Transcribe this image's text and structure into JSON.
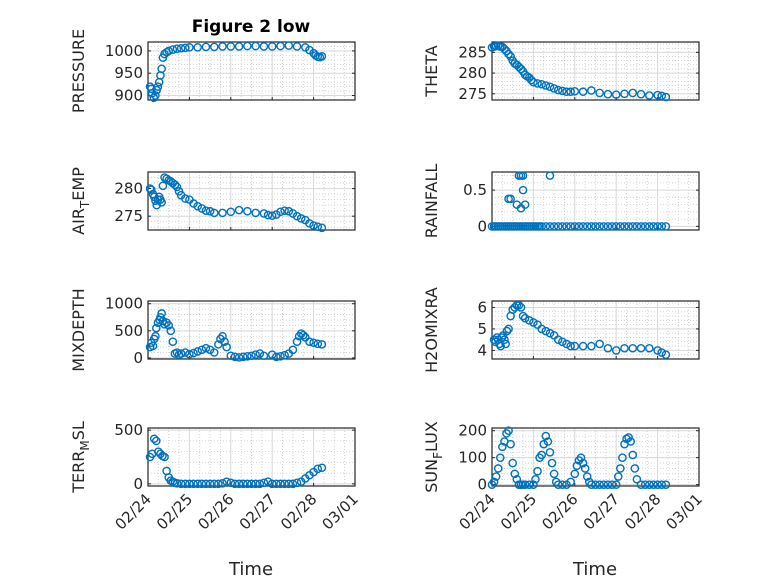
{
  "figure": {
    "title": "Figure 2 low",
    "xlabel": "Time",
    "x_tick_labels": [
      "02/24",
      "02/25",
      "02/26",
      "02/27",
      "02/28",
      "03/01"
    ],
    "marker_color": "#0072BD"
  },
  "chart_data": [
    {
      "type": "scatter",
      "ylabel": "PRESSURE",
      "xlim": [
        0,
        5
      ],
      "ylim": [
        890,
        1020
      ],
      "yticks": [
        900,
        950,
        1000
      ],
      "x": [
        0.05,
        0.08,
        0.1,
        0.14,
        0.18,
        0.21,
        0.24,
        0.27,
        0.3,
        0.33,
        0.36,
        0.4,
        0.45,
        0.5,
        0.6,
        0.7,
        0.8,
        0.9,
        1.0,
        1.2,
        1.4,
        1.6,
        1.8,
        2.0,
        2.2,
        2.4,
        2.6,
        2.8,
        3.0,
        3.2,
        3.4,
        3.6,
        3.8,
        3.9,
        4.0,
        4.05,
        4.1,
        4.15,
        4.2
      ],
      "y": [
        920,
        915,
        905,
        895,
        900,
        912,
        920,
        930,
        945,
        960,
        985,
        993,
        997,
        1000,
        1003,
        1005,
        1006,
        1007,
        1008,
        1008,
        1009,
        1009,
        1010,
        1010,
        1010,
        1011,
        1011,
        1010,
        1010,
        1011,
        1012,
        1010,
        1008,
        1002,
        995,
        990,
        987,
        986,
        988
      ]
    },
    {
      "type": "scatter",
      "ylabel": "THETA",
      "xlim": [
        0,
        5
      ],
      "ylim": [
        273.5,
        287.5
      ],
      "yticks": [
        275,
        280,
        285
      ],
      "x": [
        0.0,
        0.05,
        0.1,
        0.15,
        0.2,
        0.25,
        0.3,
        0.35,
        0.4,
        0.45,
        0.5,
        0.55,
        0.6,
        0.65,
        0.7,
        0.75,
        0.8,
        0.85,
        0.9,
        0.95,
        1.0,
        1.1,
        1.2,
        1.3,
        1.4,
        1.5,
        1.6,
        1.7,
        1.8,
        1.9,
        2.0,
        2.2,
        2.4,
        2.6,
        2.8,
        3.0,
        3.2,
        3.4,
        3.6,
        3.8,
        4.0,
        4.1,
        4.2
      ],
      "y": [
        286.2,
        286.4,
        286.5,
        286.6,
        286.4,
        286.3,
        285.8,
        285.3,
        284.6,
        284.0,
        283.0,
        282.3,
        282.0,
        281.5,
        281.0,
        280.4,
        279.6,
        279.2,
        278.9,
        278.3,
        277.8,
        277.5,
        277.3,
        277.0,
        276.7,
        276.3,
        275.9,
        275.7,
        275.5,
        275.5,
        275.6,
        275.5,
        275.8,
        275.2,
        274.9,
        274.8,
        275.0,
        275.2,
        274.9,
        274.6,
        274.7,
        274.5,
        274.2
      ]
    },
    {
      "type": "scatter",
      "ylabel": "AIR_TEMP",
      "xlim": [
        0,
        5
      ],
      "ylim": [
        272.5,
        283
      ],
      "yticks": [
        275,
        280
      ],
      "x": [
        0.05,
        0.08,
        0.12,
        0.15,
        0.18,
        0.21,
        0.24,
        0.27,
        0.3,
        0.33,
        0.36,
        0.4,
        0.45,
        0.5,
        0.55,
        0.6,
        0.65,
        0.7,
        0.75,
        0.8,
        0.9,
        1.0,
        1.1,
        1.2,
        1.3,
        1.4,
        1.5,
        1.6,
        1.8,
        2.0,
        2.2,
        2.4,
        2.6,
        2.8,
        2.9,
        3.0,
        3.1,
        3.2,
        3.3,
        3.4,
        3.5,
        3.6,
        3.7,
        3.8,
        3.9,
        4.0,
        4.1,
        4.2
      ],
      "y": [
        280.0,
        279.8,
        279.0,
        278.5,
        277.8,
        277.0,
        278.0,
        278.5,
        278.0,
        277.5,
        280.5,
        282.0,
        281.8,
        281.5,
        281.3,
        281.0,
        280.7,
        280.3,
        279.5,
        278.8,
        278.2,
        278.0,
        277.3,
        276.8,
        276.4,
        276.0,
        275.9,
        275.6,
        275.6,
        275.8,
        276.1,
        275.9,
        275.6,
        275.5,
        275.2,
        275.1,
        275.3,
        275.8,
        276.0,
        275.9,
        275.5,
        275.0,
        274.6,
        274.3,
        273.7,
        273.3,
        273.1,
        272.9
      ]
    },
    {
      "type": "scatter",
      "ylabel": "RAINFALL",
      "xlim": [
        0,
        5
      ],
      "ylim": [
        -0.05,
        0.75
      ],
      "yticks": [
        0,
        0.5
      ],
      "x": [
        0.0,
        0.05,
        0.1,
        0.15,
        0.2,
        0.25,
        0.3,
        0.35,
        0.4,
        0.45,
        0.5,
        0.55,
        0.6,
        0.65,
        0.7,
        0.75,
        0.8,
        0.85,
        0.9,
        0.95,
        1.0,
        1.05,
        1.1,
        1.15,
        1.2,
        1.3,
        1.4,
        1.5,
        1.6,
        1.7,
        1.8,
        1.9,
        2.0,
        2.1,
        2.2,
        2.3,
        2.4,
        2.5,
        2.6,
        2.7,
        2.8,
        2.9,
        3.0,
        3.1,
        3.2,
        3.3,
        3.4,
        3.5,
        3.6,
        3.7,
        3.8,
        3.9,
        4.0,
        4.1,
        4.2,
        0.4,
        0.45,
        0.6,
        0.65,
        0.7,
        0.7,
        0.75,
        0.75,
        0.8,
        1.4
      ],
      "y": [
        0,
        0,
        0,
        0,
        0,
        0,
        0,
        0,
        0,
        0,
        0,
        0,
        0,
        0,
        0,
        0,
        0,
        0,
        0,
        0,
        0,
        0,
        0,
        0,
        0,
        0,
        0,
        0,
        0,
        0,
        0,
        0,
        0,
        0,
        0,
        0,
        0,
        0,
        0,
        0,
        0,
        0,
        0,
        0,
        0,
        0,
        0,
        0,
        0,
        0,
        0,
        0,
        0,
        0,
        0,
        0.38,
        0.38,
        0.3,
        0.7,
        0.7,
        0.25,
        0.7,
        0.5,
        0.3,
        0.7
      ]
    },
    {
      "type": "scatter",
      "ylabel": "MIXDEPTH",
      "xlim": [
        0,
        5
      ],
      "ylim": [
        -20,
        1050
      ],
      "yticks": [
        0,
        500,
        1000
      ],
      "x": [
        0.05,
        0.08,
        0.12,
        0.15,
        0.18,
        0.2,
        0.24,
        0.28,
        0.3,
        0.33,
        0.36,
        0.4,
        0.45,
        0.5,
        0.55,
        0.6,
        0.65,
        0.7,
        0.75,
        0.8,
        0.9,
        1.0,
        1.1,
        1.2,
        1.3,
        1.4,
        1.5,
        1.6,
        1.7,
        1.75,
        1.8,
        1.85,
        1.9,
        2.0,
        2.1,
        2.2,
        2.3,
        2.4,
        2.5,
        2.6,
        2.7,
        2.8,
        3.0,
        3.1,
        3.2,
        3.3,
        3.4,
        3.5,
        3.6,
        3.65,
        3.7,
        3.75,
        3.8,
        3.9,
        4.0,
        4.1,
        4.2
      ],
      "y": [
        200,
        280,
        220,
        350,
        400,
        550,
        650,
        700,
        750,
        820,
        680,
        620,
        650,
        600,
        500,
        300,
        80,
        100,
        60,
        80,
        100,
        70,
        90,
        120,
        150,
        180,
        150,
        100,
        250,
        350,
        400,
        300,
        200,
        40,
        20,
        10,
        20,
        30,
        40,
        60,
        80,
        40,
        60,
        20,
        30,
        50,
        80,
        150,
        300,
        400,
        450,
        420,
        380,
        300,
        280,
        260,
        250
      ]
    },
    {
      "type": "scatter",
      "ylabel": "H2OMIXRA",
      "xlim": [
        0,
        5
      ],
      "ylim": [
        3.6,
        6.3
      ],
      "yticks": [
        4,
        5,
        6
      ],
      "x": [
        0.05,
        0.08,
        0.12,
        0.15,
        0.18,
        0.21,
        0.24,
        0.27,
        0.3,
        0.33,
        0.36,
        0.4,
        0.45,
        0.5,
        0.55,
        0.6,
        0.65,
        0.7,
        0.75,
        0.8,
        0.9,
        1.0,
        1.1,
        1.2,
        1.3,
        1.4,
        1.5,
        1.6,
        1.7,
        1.8,
        1.9,
        2.0,
        2.2,
        2.4,
        2.6,
        2.8,
        3.0,
        3.2,
        3.4,
        3.6,
        3.8,
        4.0,
        4.1,
        4.2
      ],
      "y": [
        4.5,
        4.4,
        4.6,
        4.5,
        4.3,
        4.2,
        4.6,
        4.7,
        4.5,
        4.3,
        4.9,
        5.0,
        5.6,
        5.9,
        6.0,
        6.1,
        6.1,
        6.0,
        5.6,
        5.5,
        5.4,
        5.3,
        5.2,
        5.0,
        4.9,
        4.8,
        4.7,
        4.5,
        4.4,
        4.3,
        4.2,
        4.2,
        4.2,
        4.2,
        4.3,
        4.1,
        4.0,
        4.1,
        4.1,
        4.1,
        4.1,
        4.0,
        3.9,
        3.8
      ]
    },
    {
      "type": "scatter",
      "ylabel": "TERR_MSL",
      "xlim": [
        0,
        5
      ],
      "ylim": [
        -20,
        520
      ],
      "yticks": [
        0,
        500
      ],
      "x": [
        0.05,
        0.1,
        0.15,
        0.2,
        0.25,
        0.3,
        0.35,
        0.4,
        0.45,
        0.5,
        0.55,
        0.6,
        0.65,
        0.7,
        0.8,
        0.9,
        1.0,
        1.1,
        1.2,
        1.3,
        1.4,
        1.5,
        1.6,
        1.7,
        1.8,
        1.9,
        2.0,
        2.1,
        2.2,
        2.3,
        2.4,
        2.5,
        2.6,
        2.7,
        2.8,
        2.9,
        3.0,
        3.1,
        3.2,
        3.3,
        3.4,
        3.5,
        3.6,
        3.7,
        3.8,
        3.9,
        4.0,
        4.1,
        4.2
      ],
      "y": [
        250,
        280,
        420,
        400,
        300,
        280,
        260,
        250,
        120,
        60,
        30,
        20,
        10,
        5,
        0,
        0,
        0,
        0,
        0,
        0,
        0,
        0,
        0,
        0,
        5,
        20,
        10,
        0,
        0,
        0,
        0,
        0,
        0,
        0,
        10,
        20,
        0,
        0,
        0,
        0,
        0,
        0,
        10,
        20,
        50,
        80,
        110,
        140,
        150
      ]
    },
    {
      "type": "scatter",
      "ylabel": "SUN_FLUX",
      "xlim": [
        0,
        5
      ],
      "ylim": [
        -5,
        210
      ],
      "yticks": [
        0,
        100,
        200
      ],
      "x": [
        0.0,
        0.05,
        0.1,
        0.15,
        0.2,
        0.25,
        0.3,
        0.35,
        0.4,
        0.45,
        0.5,
        0.55,
        0.6,
        0.65,
        0.7,
        0.75,
        0.8,
        0.9,
        1.0,
        1.05,
        1.1,
        1.15,
        1.2,
        1.25,
        1.3,
        1.35,
        1.4,
        1.45,
        1.5,
        1.55,
        1.6,
        1.7,
        1.8,
        1.9,
        2.0,
        2.05,
        2.1,
        2.15,
        2.2,
        2.25,
        2.3,
        2.35,
        2.4,
        2.5,
        2.6,
        2.7,
        2.8,
        2.9,
        3.0,
        3.05,
        3.1,
        3.15,
        3.2,
        3.25,
        3.3,
        3.35,
        3.4,
        3.45,
        3.5,
        3.6,
        3.7,
        3.8,
        3.9,
        4.0,
        4.1,
        4.2
      ],
      "y": [
        0,
        10,
        30,
        60,
        100,
        140,
        160,
        190,
        200,
        150,
        80,
        40,
        20,
        0,
        0,
        0,
        0,
        0,
        0,
        20,
        50,
        100,
        110,
        150,
        180,
        160,
        120,
        80,
        40,
        10,
        0,
        0,
        0,
        10,
        40,
        70,
        90,
        100,
        80,
        60,
        30,
        10,
        0,
        0,
        0,
        0,
        0,
        0,
        0,
        30,
        60,
        100,
        150,
        170,
        175,
        160,
        110,
        60,
        20,
        0,
        0,
        0,
        0,
        0,
        0,
        0
      ]
    }
  ]
}
